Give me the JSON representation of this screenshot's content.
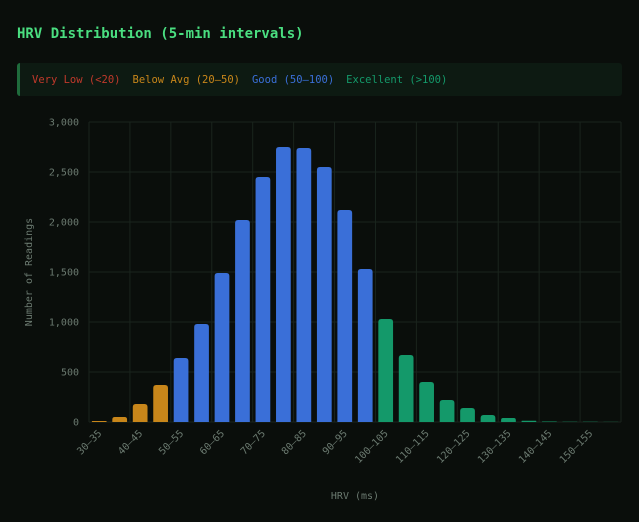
{
  "chart_data": {
    "type": "bar",
    "title": "HRV Distribution (5-min intervals)",
    "legend": [
      {
        "name": "Very Low (<20)",
        "color": "#c0392b"
      },
      {
        "name": "Below Avg (20–50)",
        "color": "#c8861a"
      },
      {
        "name": "Good (50–100)",
        "color": "#3a6fd8"
      },
      {
        "name": "Excellent (>100)",
        "color": "#14996a"
      }
    ],
    "x_label": "HRV (ms)",
    "y_label": "Number of Readings",
    "categories": [
      "30–35",
      null,
      "40–45",
      null,
      "50–55",
      null,
      "60–65",
      null,
      "70–75",
      null,
      "80–85",
      null,
      "90–95",
      null,
      "100–105",
      null,
      "110–115",
      null,
      "120–125",
      null,
      "130–135",
      null,
      "140–145",
      null,
      "150–155",
      null
    ],
    "values": [
      10,
      50,
      180,
      370,
      640,
      980,
      1490,
      2020,
      2450,
      2750,
      2740,
      2550,
      2120,
      1530,
      1030,
      670,
      400,
      220,
      140,
      70,
      40,
      12,
      5,
      3,
      2,
      1
    ],
    "colors": [
      "#c8861a",
      "#c8861a",
      "#c8861a",
      "#c8861a",
      "#3a6fd8",
      "#3a6fd8",
      "#3a6fd8",
      "#3a6fd8",
      "#3a6fd8",
      "#3a6fd8",
      "#3a6fd8",
      "#3a6fd8",
      "#3a6fd8",
      "#3a6fd8",
      "#14996a",
      "#14996a",
      "#14996a",
      "#14996a",
      "#14996a",
      "#14996a",
      "#14996a",
      "#14996a",
      "#14996a",
      "#14996a",
      "#14996a",
      "#14996a"
    ],
    "ylim": [
      0,
      3000
    ],
    "yticks": [
      0,
      500,
      {
        "value": 1000,
        "label": "1,000"
      },
      {
        "value": 1500,
        "label": "1,500"
      },
      {
        "value": 2000,
        "label": "2,000"
      },
      {
        "value": 2500,
        "label": "2,500"
      },
      {
        "value": 3000,
        "label": "3,000"
      }
    ],
    "grid": true
  }
}
